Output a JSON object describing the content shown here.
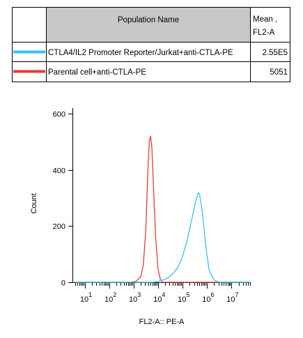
{
  "legend": {
    "header_name": "Population Name",
    "header_stat_line1": "Mean ,",
    "header_stat_line2": "FL2-A",
    "header_fill": "#c8c8c8",
    "rows": [
      {
        "color": "#33c3f0",
        "name": "CTLA4/IL2 Promoter Reporter/Jurkat+anti-CTLA-PE",
        "value": "2.55E5"
      },
      {
        "color": "#e83a3a",
        "name": "Parental cell+anti-CTLA-PE",
        "value": "5051"
      }
    ]
  },
  "chart_data": {
    "type": "line",
    "title": "",
    "xlabel": "FL2-A:: PE-A",
    "ylabel": "Count",
    "x_scale": "log",
    "xlim_log10": [
      0.5,
      7.8
    ],
    "ylim": [
      0,
      620
    ],
    "y_ticks": [
      0,
      200,
      400,
      600
    ],
    "x_tick_labels": [
      {
        "base": "10",
        "exp": "1"
      },
      {
        "base": "10",
        "exp": "2"
      },
      {
        "base": "10",
        "exp": "3"
      },
      {
        "base": "10",
        "exp": "4"
      },
      {
        "base": "10",
        "exp": "5"
      },
      {
        "base": "10",
        "exp": "6"
      },
      {
        "base": "10",
        "exp": "7"
      }
    ],
    "x_tick_log10": [
      1,
      2,
      3,
      4,
      5,
      6,
      7
    ],
    "grid": false,
    "series": [
      {
        "color": "#e83a3a",
        "log10_x": [
          0.6,
          2.9,
          3.1,
          3.3,
          3.4,
          3.5,
          3.55,
          3.6,
          3.65,
          3.7,
          3.75,
          3.8,
          3.9,
          4.0,
          4.1,
          4.2,
          7.8
        ],
        "values": [
          0,
          0,
          3,
          20,
          60,
          180,
          300,
          420,
          505,
          520,
          480,
          380,
          170,
          50,
          10,
          0,
          0
        ]
      },
      {
        "color": "#33c3f0",
        "log10_x": [
          0.6,
          3.8,
          4.0,
          4.2,
          4.4,
          4.6,
          4.8,
          5.0,
          5.2,
          5.4,
          5.55,
          5.65,
          5.7,
          5.8,
          5.9,
          6.0,
          6.1,
          6.3,
          6.5,
          7.8
        ],
        "values": [
          0,
          0,
          3,
          8,
          15,
          30,
          50,
          90,
          150,
          230,
          290,
          318,
          315,
          260,
          180,
          100,
          40,
          8,
          0,
          0
        ]
      }
    ]
  }
}
